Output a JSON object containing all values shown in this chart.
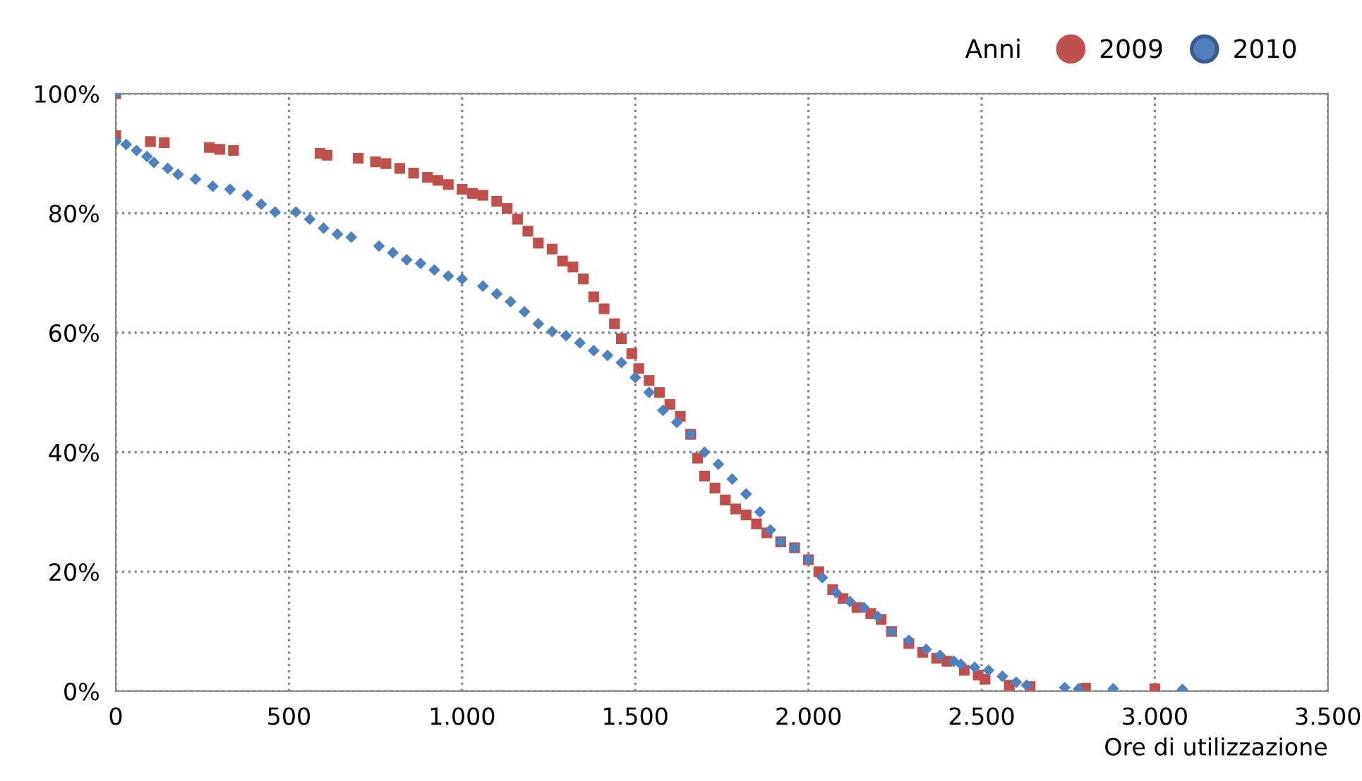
{
  "chart_data": {
    "type": "scatter",
    "xlabel": "Ore di utilizzazione",
    "legend_title": "Anni",
    "legend": "top right",
    "grid": true,
    "xlim": [
      0,
      3500
    ],
    "xticks": [
      0,
      500,
      {
        "value": 1000,
        "label": "1.000"
      },
      {
        "value": 1500,
        "label": "1.500"
      },
      {
        "value": 2000,
        "label": "2.000"
      },
      {
        "value": 2500,
        "label": "2.500"
      },
      {
        "value": 3000,
        "label": "3.000"
      },
      {
        "value": 3500,
        "label": "3.500"
      }
    ],
    "ylim": [
      0,
      100
    ],
    "yticks": [
      {
        "value": 0,
        "label": "0%"
      },
      {
        "value": 20,
        "label": "20%"
      },
      {
        "value": 40,
        "label": "40%"
      },
      {
        "value": 60,
        "label": "60%"
      },
      {
        "value": 80,
        "label": "80%"
      },
      {
        "value": 100,
        "label": "100%"
      }
    ],
    "series": [
      {
        "name": "2009",
        "color": "#c0504d",
        "marker": "square",
        "x": [
          0,
          0,
          100,
          140,
          270,
          300,
          340,
          590,
          610,
          700,
          750,
          780,
          820,
          860,
          900,
          930,
          960,
          1000,
          1030,
          1060,
          1100,
          1130,
          1160,
          1190,
          1220,
          1260,
          1290,
          1320,
          1350,
          1380,
          1410,
          1440,
          1460,
          1490,
          1510,
          1540,
          1570,
          1600,
          1630,
          1660,
          1680,
          1700,
          1730,
          1760,
          1790,
          1820,
          1850,
          1880,
          1920,
          1960,
          2000,
          2030,
          2070,
          2100,
          2140,
          2180,
          2210,
          2240,
          2290,
          2330,
          2370,
          2400,
          2450,
          2490,
          2510,
          2580,
          2640,
          2800,
          3000
        ],
        "values": [
          100,
          93,
          92,
          91.8,
          91,
          90.7,
          90.5,
          90,
          89.7,
          89.2,
          88.6,
          88.3,
          87.5,
          86.7,
          86,
          85.5,
          84.8,
          84,
          83.3,
          83,
          82,
          80.8,
          79,
          77,
          75,
          74,
          72,
          71,
          69,
          66,
          64,
          61.5,
          59,
          56.5,
          54,
          52,
          50,
          48,
          46,
          43,
          39,
          36,
          34,
          32,
          30.5,
          29.5,
          28,
          26.5,
          25,
          24,
          22,
          20,
          17,
          15.5,
          14,
          13,
          12,
          10,
          8,
          6.5,
          5.5,
          5,
          3.5,
          2.7,
          2,
          1,
          0.8,
          0.5,
          0.4
        ]
      },
      {
        "name": "2010",
        "color": "#4f81bd",
        "marker": "diamond",
        "x": [
          0,
          0,
          30,
          60,
          90,
          110,
          150,
          180,
          230,
          280,
          330,
          380,
          420,
          460,
          520,
          560,
          600,
          640,
          680,
          760,
          800,
          840,
          880,
          920,
          960,
          1000,
          1060,
          1100,
          1140,
          1180,
          1220,
          1260,
          1300,
          1340,
          1380,
          1420,
          1460,
          1500,
          1540,
          1580,
          1620,
          1660,
          1700,
          1740,
          1780,
          1820,
          1860,
          1890,
          1920,
          1960,
          2000,
          2040,
          2080,
          2120,
          2160,
          2200,
          2240,
          2290,
          2340,
          2380,
          2420,
          2440,
          2480,
          2520,
          2560,
          2600,
          2630,
          2740,
          2780,
          2880,
          3080
        ],
        "values": [
          100,
          92,
          91.5,
          90.5,
          89.5,
          88.5,
          87.5,
          86.5,
          85.7,
          84.5,
          84,
          83,
          81.5,
          80.2,
          80.2,
          79,
          77.5,
          76.5,
          76,
          74.5,
          73.4,
          72.2,
          71.6,
          70.5,
          69.5,
          69,
          67.8,
          66.5,
          65.2,
          63.5,
          61.5,
          60.2,
          59.5,
          58.3,
          57,
          56.2,
          55,
          52.5,
          50,
          47,
          45,
          43,
          40,
          38,
          35.5,
          33,
          30,
          27,
          25,
          24,
          22,
          19,
          16.5,
          15,
          14,
          12.5,
          10,
          8.5,
          7,
          6,
          5,
          4.5,
          4,
          3.5,
          2.5,
          1.5,
          1,
          0.6,
          0.4,
          0.4,
          0.3
        ]
      }
    ]
  }
}
